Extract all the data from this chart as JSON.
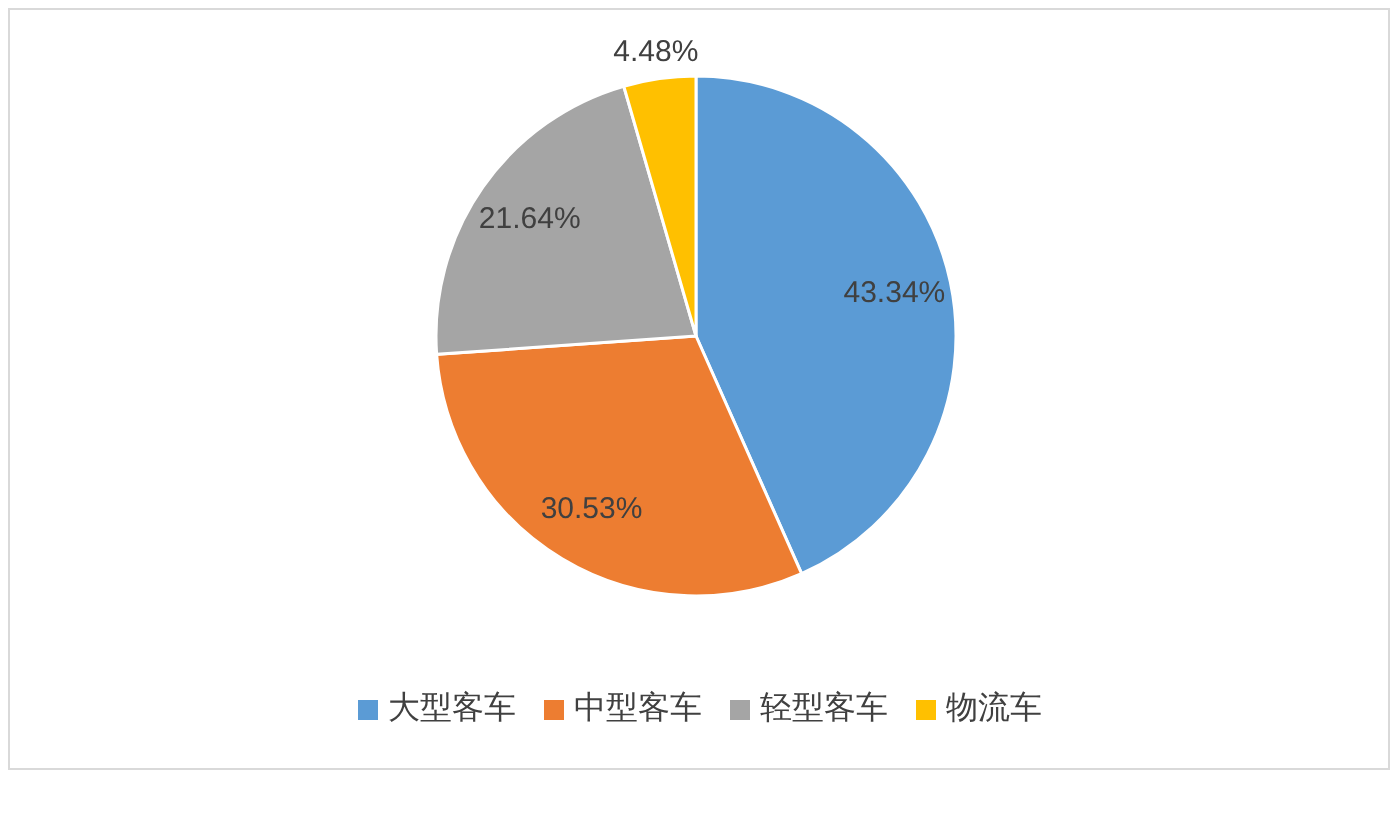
{
  "chart_data": {
    "type": "pie",
    "categories": [
      "大型客车",
      "中型客车",
      "轻型客车",
      "物流车"
    ],
    "values": [
      43.34,
      30.53,
      21.64,
      4.48
    ],
    "value_labels": [
      "43.34%",
      "30.53%",
      "21.64%",
      "4.48%"
    ],
    "colors": [
      "#5b9bd5",
      "#ed7d31",
      "#a5a5a5",
      "#ffc000"
    ],
    "legend": "bottom"
  }
}
